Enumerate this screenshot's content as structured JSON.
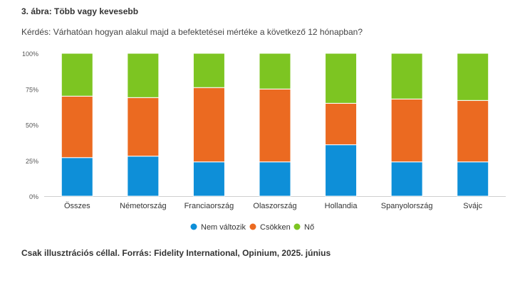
{
  "title": "3. ábra: Több vagy kevesebb",
  "question": "Kérdés: Várhatóan hogyan alakul majd a befektetései mértéke a következő 12 hónapban?",
  "footer": "Csak illusztrációs céllal. Forrás: Fidelity International, Opinium, 2025. június",
  "chart_data": {
    "type": "bar",
    "stacked": true,
    "categories": [
      "Összes",
      "Németország",
      "Franciaország",
      "Olaszország",
      "Hollandia",
      "Spanyolország",
      "Svájc"
    ],
    "series": [
      {
        "name": "Nem változik",
        "color": "#0E8FD8",
        "values": [
          27,
          28,
          24,
          24,
          36,
          24,
          24
        ]
      },
      {
        "name": "Csökken",
        "color": "#EB6A21",
        "values": [
          43,
          41,
          52,
          51,
          29,
          44,
          43
        ]
      },
      {
        "name": "Nő",
        "color": "#7DC522",
        "values": [
          30,
          31,
          24,
          25,
          35,
          32,
          33
        ]
      }
    ],
    "yticks": [
      "0%",
      "25%",
      "50%",
      "75%",
      "100%"
    ],
    "ylim": [
      0,
      100
    ],
    "grid": false,
    "legend_position": "bottom"
  }
}
